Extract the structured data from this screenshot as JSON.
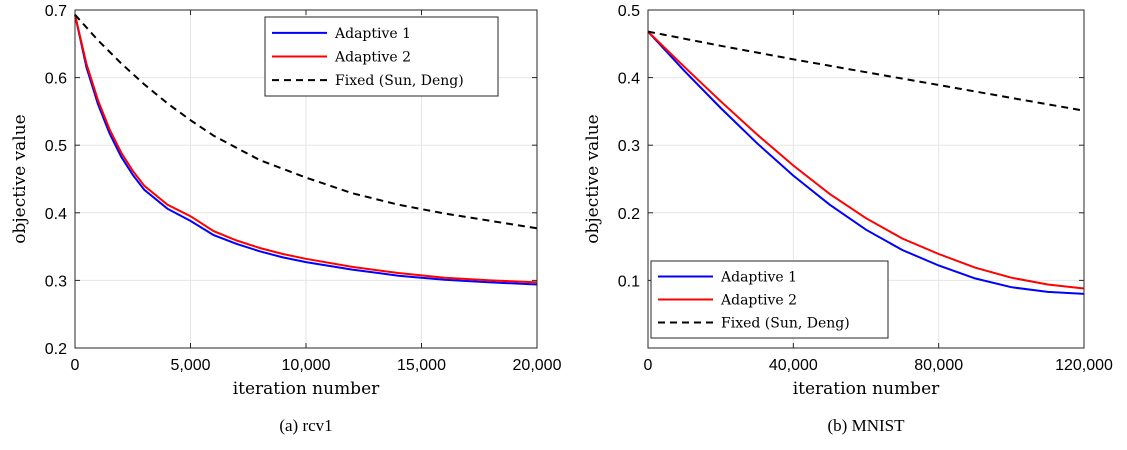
{
  "chart_data": [
    {
      "type": "line",
      "caption": "(a) rcv1",
      "xlabel": "iteration number",
      "ylabel": "objective value",
      "xlim": [
        0,
        20000
      ],
      "ylim": [
        0.2,
        0.7
      ],
      "xticks": [
        0,
        5000,
        10000,
        15000,
        20000
      ],
      "xtick_labels": [
        "0",
        "5,000",
        "10,000",
        "15,000",
        "20,000"
      ],
      "yticks": [
        0.2,
        0.3,
        0.4,
        0.5,
        0.6,
        0.7
      ],
      "ytick_labels": [
        "0.2",
        "0.3",
        "0.4",
        "0.5",
        "0.6",
        "0.7"
      ],
      "grid": true,
      "legend_position": "top-right",
      "series": [
        {
          "name": "Adaptive 1",
          "color": "#0000ff",
          "dash": "solid",
          "x": [
            0,
            500,
            1000,
            1500,
            2000,
            2500,
            3000,
            4000,
            5000,
            6000,
            7000,
            8000,
            9000,
            10000,
            12000,
            14000,
            16000,
            18000,
            20000
          ],
          "y": [
            0.693,
            0.615,
            0.56,
            0.517,
            0.483,
            0.456,
            0.434,
            0.406,
            0.388,
            0.367,
            0.354,
            0.343,
            0.334,
            0.327,
            0.316,
            0.307,
            0.301,
            0.297,
            0.294
          ]
        },
        {
          "name": "Adaptive 2",
          "color": "#ff0000",
          "dash": "solid",
          "x": [
            0,
            500,
            1000,
            1500,
            2000,
            2500,
            3000,
            4000,
            5000,
            6000,
            7000,
            8000,
            9000,
            10000,
            12000,
            14000,
            16000,
            18000,
            20000
          ],
          "y": [
            0.693,
            0.62,
            0.566,
            0.523,
            0.489,
            0.462,
            0.44,
            0.412,
            0.395,
            0.373,
            0.359,
            0.348,
            0.339,
            0.332,
            0.32,
            0.311,
            0.304,
            0.3,
            0.297
          ]
        },
        {
          "name": "Fixed (Sun, Deng)",
          "color": "#000000",
          "dash": "dashed",
          "x": [
            0,
            1000,
            2000,
            3000,
            4000,
            5000,
            6000,
            8000,
            10000,
            12000,
            14000,
            16000,
            18000,
            20000
          ],
          "y": [
            0.693,
            0.655,
            0.621,
            0.59,
            0.562,
            0.537,
            0.514,
            0.478,
            0.452,
            0.429,
            0.412,
            0.399,
            0.388,
            0.377
          ]
        }
      ]
    },
    {
      "type": "line",
      "caption": "(b) MNIST",
      "xlabel": "iteration number",
      "ylabel": "objective value",
      "xlim": [
        0,
        120000
      ],
      "ylim": [
        0,
        0.5
      ],
      "xticks": [
        0,
        40000,
        80000,
        120000
      ],
      "xtick_labels": [
        "0",
        "40,000",
        "80,000",
        "120,000"
      ],
      "yticks": [
        0.1,
        0.2,
        0.3,
        0.4,
        0.5
      ],
      "ytick_labels": [
        "0.1",
        "0.2",
        "0.3",
        "0.4",
        "0.5"
      ],
      "grid": true,
      "legend_position": "bottom-left",
      "series": [
        {
          "name": "Adaptive 1",
          "color": "#0000ff",
          "dash": "solid",
          "x": [
            0,
            10000,
            20000,
            30000,
            40000,
            50000,
            60000,
            70000,
            80000,
            90000,
            100000,
            110000,
            120000
          ],
          "y": [
            0.468,
            0.41,
            0.355,
            0.303,
            0.255,
            0.212,
            0.175,
            0.145,
            0.122,
            0.103,
            0.09,
            0.083,
            0.08
          ]
        },
        {
          "name": "Adaptive 2",
          "color": "#ff0000",
          "dash": "solid",
          "x": [
            0,
            10000,
            20000,
            30000,
            40000,
            50000,
            60000,
            70000,
            80000,
            90000,
            100000,
            110000,
            120000
          ],
          "y": [
            0.468,
            0.416,
            0.365,
            0.316,
            0.27,
            0.228,
            0.192,
            0.162,
            0.139,
            0.119,
            0.104,
            0.094,
            0.088
          ]
        },
        {
          "name": "Fixed (Sun, Deng)",
          "color": "#000000",
          "dash": "dashed",
          "x": [
            0,
            20000,
            40000,
            60000,
            80000,
            100000,
            120000
          ],
          "y": [
            0.468,
            0.447,
            0.427,
            0.408,
            0.389,
            0.37,
            0.351
          ]
        }
      ]
    }
  ]
}
